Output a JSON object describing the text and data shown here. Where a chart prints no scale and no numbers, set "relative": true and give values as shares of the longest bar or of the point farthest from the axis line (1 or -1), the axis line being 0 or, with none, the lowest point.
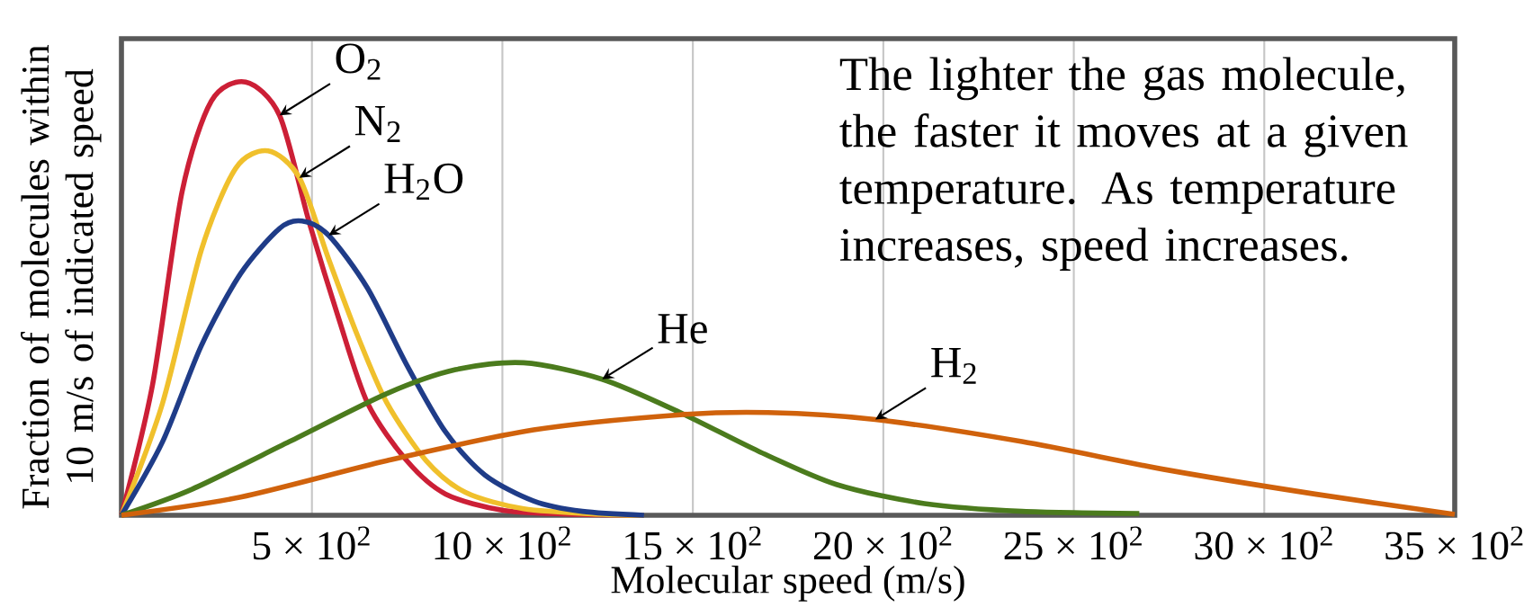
{
  "chart_data": {
    "type": "line",
    "relative": true,
    "xlabel": "Molecular speed (m/s)",
    "ylabel": "Fraction of molecules within 10 m/s of indicated speed",
    "xlim": [
      0,
      3500
    ],
    "xticks": [
      {
        "value": 500,
        "label": "5 × 10$^{2}$"
      },
      {
        "value": 1000,
        "label": "10 × 10$^{2}$"
      },
      {
        "value": 1500,
        "label": "15 × 10$^{2}$"
      },
      {
        "value": 2000,
        "label": "20 × 10$^{2}$"
      },
      {
        "value": 2500,
        "label": "25 × 10$^{2}$"
      },
      {
        "value": 3000,
        "label": "30 × 10$^{2}$"
      },
      {
        "value": 3500,
        "label": "35 × 10$^{2}$"
      }
    ],
    "grid": "x",
    "annotations": [
      "The lighter the gas molecule, the faster it moves at a given temperature.  As temperature increases, speed increases."
    ],
    "series": [
      {
        "name": "O$_{2}$",
        "color": "#cc1f36",
        "x": [
          0,
          82,
          159,
          236,
          326,
          415,
          492,
          569,
          646,
          749,
          851,
          1005,
          1210,
          1372
        ],
        "values": [
          0,
          0.303,
          0.746,
          0.956,
          1,
          0.923,
          0.679,
          0.458,
          0.259,
          0.126,
          0.049,
          0.011,
          0.002,
          0
        ]
      },
      {
        "name": "N$_{2}$",
        "color": "#f0c02c",
        "x": [
          0,
          108,
          210,
          300,
          385,
          467,
          544,
          620,
          697,
          800,
          903,
          1056,
          1262,
          1372
        ],
        "values": [
          0,
          0.259,
          0.613,
          0.801,
          0.841,
          0.779,
          0.591,
          0.414,
          0.259,
          0.126,
          0.053,
          0.015,
          0.002,
          0
        ]
      },
      {
        "name": "H$_{2}$O",
        "color": "#1f3c88",
        "x": [
          0,
          108,
          210,
          313,
          415,
          474,
          544,
          646,
          749,
          851,
          954,
          1082,
          1210,
          1372
        ],
        "values": [
          0,
          0.17,
          0.392,
          0.558,
          0.662,
          0.679,
          0.646,
          0.524,
          0.347,
          0.192,
          0.093,
          0.033,
          0.009,
          0
        ]
      },
      {
        "name": "He",
        "color": "#4b7b1d",
        "x": [
          0,
          185,
          441,
          697,
          877,
          1056,
          1262,
          1467,
          1672,
          1877,
          2108,
          2364,
          2672
        ],
        "values": [
          0,
          0.06,
          0.17,
          0.281,
          0.336,
          0.352,
          0.314,
          0.237,
          0.148,
          0.071,
          0.027,
          0.009,
          0.004
        ]
      },
      {
        "name": "H$_{2}$",
        "color": "#d0620c",
        "x": [
          0,
          313,
          697,
          1082,
          1467,
          1697,
          1979,
          2364,
          2749,
          3133,
          3500
        ],
        "values": [
          0,
          0.042,
          0.126,
          0.197,
          0.232,
          0.237,
          0.221,
          0.17,
          0.104,
          0.049,
          0.002
        ]
      }
    ]
  }
}
